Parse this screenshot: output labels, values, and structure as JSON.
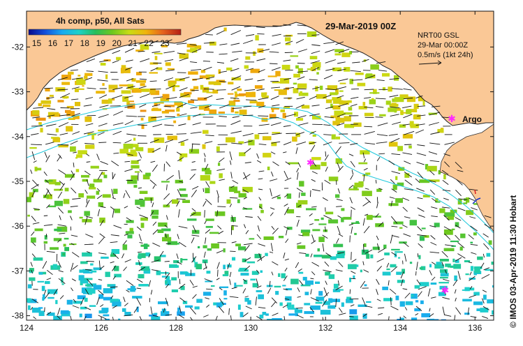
{
  "map": {
    "title": "4h comp, p50, All Sats",
    "date_label": "29-Mar-2019 00Z",
    "credit": "© IMOS 03-Apr-2019 11:30 Hobart",
    "lon_range": [
      124,
      136.5
    ],
    "lat_range": [
      -38.1,
      -31.2
    ],
    "lon_ticks": [
      "124",
      "126",
      "128",
      "130",
      "132",
      "134",
      "136"
    ],
    "lat_ticks": [
      "-32",
      "-33",
      "-34",
      "-35",
      "-36",
      "-37",
      "-38"
    ],
    "colorbar": {
      "labels": [
        "15",
        "16",
        "17",
        "18",
        "19",
        "20",
        "21",
        "22",
        "23"
      ],
      "range": [
        14.5,
        24
      ],
      "stops": [
        "#0a0a8c",
        "#1450dc",
        "#19aaf0",
        "#1ed2c8",
        "#28be5a",
        "#6ec81e",
        "#c8dc14",
        "#f0b40a",
        "#e6641e",
        "#b41e14"
      ]
    },
    "info": {
      "line1": "NRT00 GSL",
      "line2": "29-Mar 00:00Z",
      "line3": "0.5m/s (1kt 24h)"
    },
    "argo_label": "Argo",
    "argo_floats": [
      {
        "lon": 131.6,
        "lat": -34.58
      },
      {
        "lon": 135.2,
        "lat": -37.43
      }
    ],
    "land_color": "#fac896",
    "contour_color": "#1ec8dc",
    "argo_color": "#ff28ff"
  }
}
